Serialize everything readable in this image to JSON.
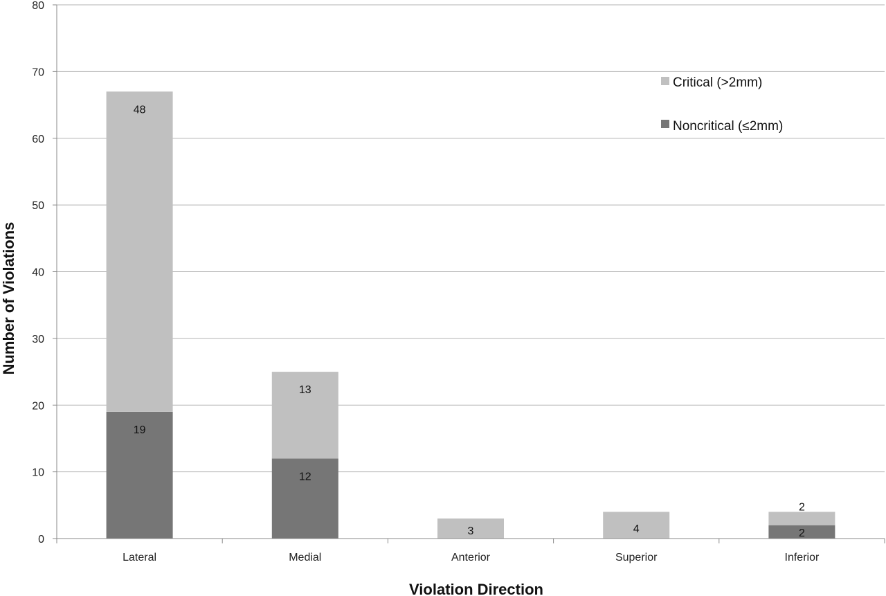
{
  "chart_data": {
    "type": "bar",
    "stacked": true,
    "categories": [
      "Lateral",
      "Medial",
      "Anterior",
      "Superior",
      "Inferior"
    ],
    "series": [
      {
        "name": "Noncritical (≤2mm)",
        "values": [
          19,
          12,
          0,
          0,
          2
        ],
        "color": "#767676"
      },
      {
        "name": "Critical (>2mm)",
        "values": [
          48,
          13,
          3,
          4,
          2
        ],
        "color": "#c0c0c0"
      }
    ],
    "xlabel": "Violation Direction",
    "ylabel": "Number of Violations",
    "ylim": [
      0,
      80
    ],
    "yticks": [
      0,
      10,
      20,
      30,
      40,
      50,
      60,
      70,
      80
    ],
    "grid": true,
    "legend": {
      "placement": "top-right",
      "order": [
        "Critical (>2mm)",
        "Noncritical (≤2mm)"
      ]
    }
  }
}
